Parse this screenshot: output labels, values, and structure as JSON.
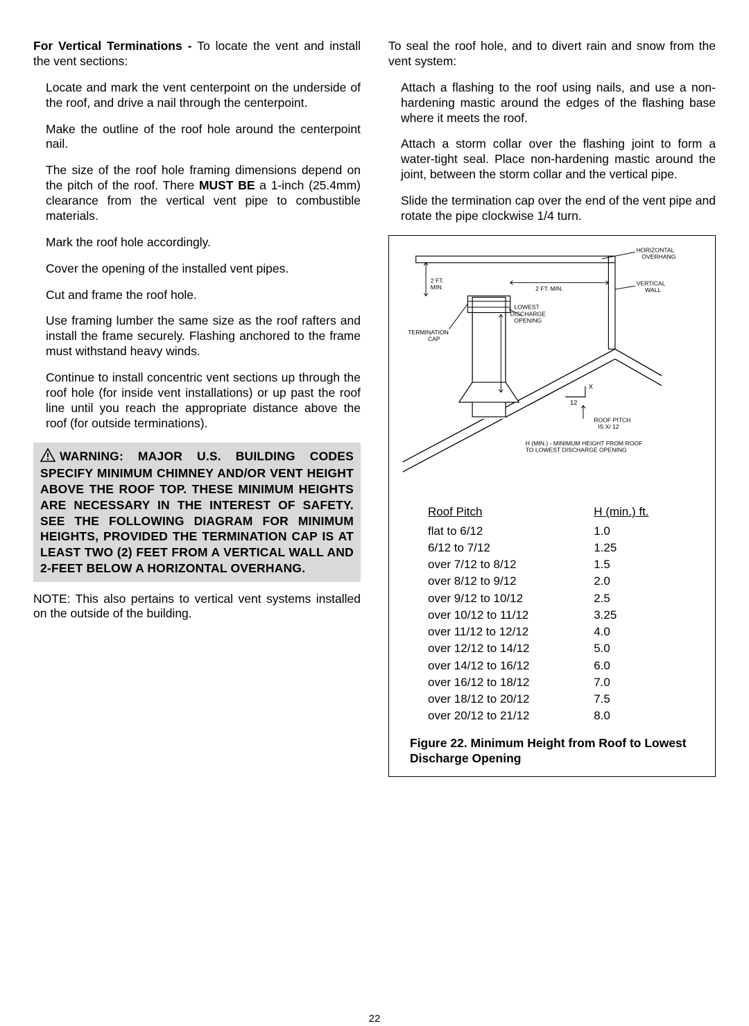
{
  "left": {
    "intro_bold": "For Vertical Terminations - ",
    "intro_rest": "To locate the vent and install the vent sections:",
    "p1": "Locate and mark the vent centerpoint on the underside of the roof, and drive a nail through the centerpoint.",
    "p2": "Make the outline of the roof hole around the centerpoint nail.",
    "p3a": "The size of the roof hole framing dimensions depend on the pitch of the roof. There ",
    "p3b": "MUST BE",
    "p3c": " a 1-inch (25.4mm) clearance from the vertical vent pipe to combustible materials.",
    "p4": "Mark the roof hole accordingly.",
    "p5": "Cover the opening of the installed vent pipes.",
    "p6": "Cut and frame the roof hole.",
    "p7": "Use framing lumber the same size as the roof rafters and install the frame securely. Flashing anchored to the frame must withstand heavy winds.",
    "p8": "Continue to install concentric vent sections up through the roof hole (for inside vent installations) or up past the roof line until you reach the appropriate distance above the roof (for outside terminations).",
    "warning": "WARNING: MAJOR U.S. BUILDING CODES SPECIFY MINIMUM CHIMNEY AND/OR VENT HEIGHT ABOVE THE ROOF TOP. THESE MINIMUM HEIGHTS ARE NECESSARY IN THE INTEREST OF SAFETY. SEE THE FOLLOWING DIAGRAM FOR MINIMUM HEIGHTS, PROVIDED THE TERMINATION CAP IS AT LEAST TWO (2) FEET FROM A VERTICAL WALL AND 2-FEET BELOW A HORIZONTAL OVERHANG.",
    "note": "NOTE: This also pertains to vertical vent systems installed on the outside of the building."
  },
  "right": {
    "intro": "To seal the roof hole, and to divert rain and snow from the vent system:",
    "p1": "Attach a flashing to the roof using nails, and use a non-hardening mastic around the edges of the flashing base where it meets the roof.",
    "p2": "Attach a storm collar over the flashing joint to form a water-tight seal. Place non-hardening mastic around the joint, between the storm collar and the vertical pipe.",
    "p3": "Slide the termination cap over the end of the vent pipe and rotate the pipe clockwise 1/4 turn."
  },
  "diagram": {
    "horiz_overhang": "HORIZONTAL\nOVERHANG",
    "two_ft_min1": "2 FT.\nMIN.",
    "two_ft_min2": "2 FT. MIN.",
    "vertical_wall": "VERTICAL\nWALL",
    "lowest": "LOWEST\nDISCHARGE\nOPENING",
    "term_cap": "TERMINATION\nCAP",
    "x": "X",
    "twelve": "12",
    "roof_pitch": "ROOF PITCH\nIS  X/ 12",
    "hmin": "H (MIN.) - MINIMUM HEIGHT FROM ROOF\nTO LOWEST DISCHARGE OPENING"
  },
  "table": {
    "head1": "Roof Pitch",
    "head2": "H (min.) ft.",
    "rows": [
      {
        "p": "flat to 6/12",
        "h": "1.0"
      },
      {
        "p": "6/12 to 7/12",
        "h": "1.25"
      },
      {
        "p": "over 7/12 to 8/12",
        "h": "1.5"
      },
      {
        "p": "over 8/12 to 9/12",
        "h": "2.0"
      },
      {
        "p": "over 9/12 to 10/12",
        "h": "2.5"
      },
      {
        "p": "over 10/12 to 11/12",
        "h": "3.25"
      },
      {
        "p": "over 11/12 to 12/12",
        "h": "4.0"
      },
      {
        "p": "over 12/12 to 14/12",
        "h": "5.0"
      },
      {
        "p": "over 14/12 to 16/12",
        "h": "6.0"
      },
      {
        "p": "over 16/12 to 18/12",
        "h": "7.0"
      },
      {
        "p": "over 18/12 to 20/12",
        "h": "7.5"
      },
      {
        "p": "over 20/12 to 21/12",
        "h": "8.0"
      }
    ],
    "caption": "Figure 22.   Minimum Height from Roof to Lowest Discharge Opening"
  },
  "page": "22"
}
